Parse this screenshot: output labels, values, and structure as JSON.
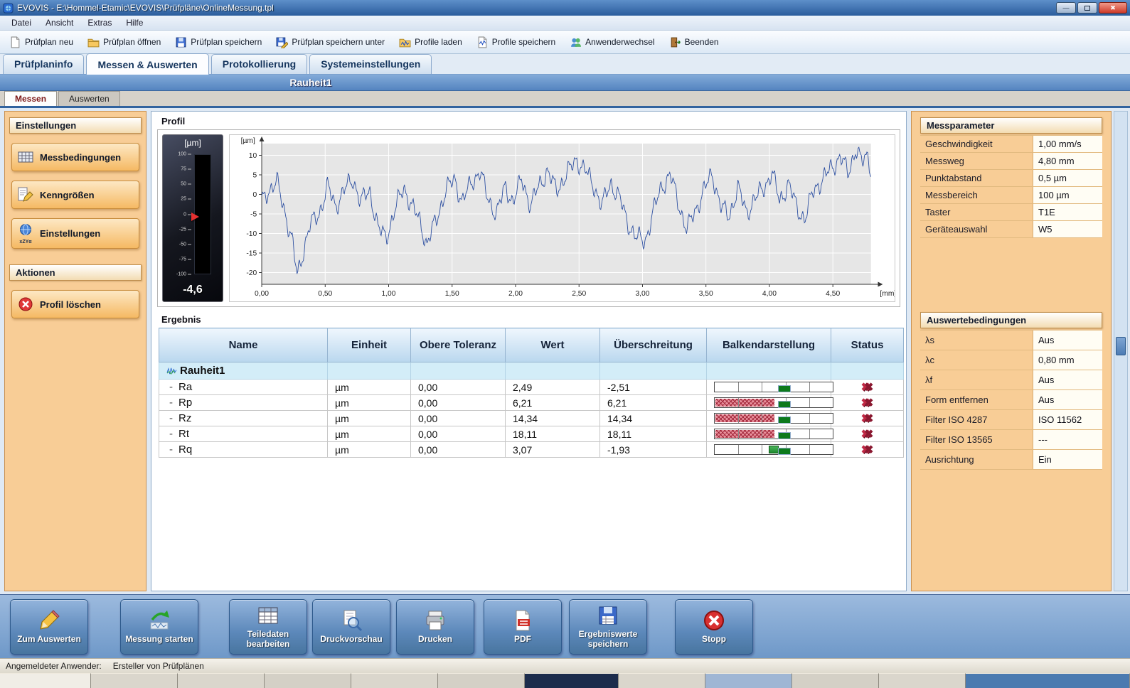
{
  "window": {
    "title": "EVOVIS - E:\\Hommel-Etamic\\EVOVIS\\Prüfpläne\\OnlineMessung.tpl"
  },
  "menubar": {
    "items": [
      "Datei",
      "Ansicht",
      "Extras",
      "Hilfe"
    ]
  },
  "toolbar": {
    "buttons": [
      {
        "label": "Prüfplan neu",
        "icon": "new-testplan-icon"
      },
      {
        "label": "Prüfplan öffnen",
        "icon": "open-testplan-icon"
      },
      {
        "label": "Prüfplan speichern",
        "icon": "save-testplan-icon"
      },
      {
        "label": "Prüfplan speichern unter",
        "icon": "save-testplan-as-icon"
      },
      {
        "label": "Profile laden",
        "icon": "load-profiles-icon"
      },
      {
        "label": "Profile speichern",
        "icon": "save-profiles-icon"
      },
      {
        "label": "Anwenderwechsel",
        "icon": "switch-user-icon"
      },
      {
        "label": "Beenden",
        "icon": "exit-icon"
      }
    ]
  },
  "tabs": {
    "items": [
      "Prüfplaninfo",
      "Messen & Auswerten",
      "Protokollierung",
      "Systemeinstellungen"
    ],
    "active_index": 1
  },
  "subtitle": "Rauheit1",
  "subtabs": {
    "items": [
      "Messen",
      "Auswerten"
    ],
    "active_index": 0
  },
  "sidebar": {
    "settings_header": "Einstellungen",
    "buttons": [
      {
        "label": "Messbedingungen",
        "icon": "measurement-conditions-icon"
      },
      {
        "label": "Kenngrößen",
        "icon": "parameters-icon"
      },
      {
        "label": "Einstellungen",
        "icon": "settings-globe-icon",
        "icon_caption": "xZYα"
      }
    ],
    "actions_header": "Aktionen",
    "action_buttons": [
      {
        "label": "Profil löschen",
        "icon": "delete-profile-icon"
      }
    ]
  },
  "profile_section": {
    "title": "Profil",
    "gauge": {
      "unit": "[µm]",
      "ticks": [
        "100",
        "75",
        "50",
        "25",
        "0",
        "-25",
        "-50",
        "-75",
        "-100"
      ],
      "max": 100,
      "min": -100,
      "value": -4.6,
      "value_label": "-4,6"
    }
  },
  "chart_data": {
    "type": "line",
    "y_unit": "[µm]",
    "x_unit": "[mm]",
    "y_ticks": [
      "10",
      "5",
      "0",
      "-5",
      "-10",
      "-15",
      "-20"
    ],
    "y_tick_values": [
      10,
      5,
      0,
      -5,
      -10,
      -15,
      -20
    ],
    "x_ticks": [
      "0,00",
      "0,50",
      "1,00",
      "1,50",
      "2,00",
      "2,50",
      "3,00",
      "3,50",
      "4,00",
      "4,50"
    ],
    "x_tick_values": [
      0,
      0.5,
      1,
      1.5,
      2,
      2.5,
      3,
      3.5,
      4,
      4.5
    ],
    "xlim": [
      0,
      4.8
    ],
    "ylim": [
      -23,
      13
    ],
    "series_name": "Rauheit1 Profil",
    "points": [
      [
        0,
        -2
      ],
      [
        0.05,
        1
      ],
      [
        0.12,
        3
      ],
      [
        0.18,
        -4
      ],
      [
        0.24,
        -12
      ],
      [
        0.28,
        -21
      ],
      [
        0.33,
        -14
      ],
      [
        0.38,
        -8
      ],
      [
        0.45,
        -5
      ],
      [
        0.52,
        2
      ],
      [
        0.58,
        -3
      ],
      [
        0.65,
        1
      ],
      [
        0.72,
        4
      ],
      [
        0.78,
        -2
      ],
      [
        0.85,
        1
      ],
      [
        0.92,
        -9
      ],
      [
        0.98,
        -11
      ],
      [
        1.05,
        -4
      ],
      [
        1.12,
        2
      ],
      [
        1.18,
        -3
      ],
      [
        1.25,
        -7
      ],
      [
        1.3,
        -13
      ],
      [
        1.38,
        -6
      ],
      [
        1.45,
        1
      ],
      [
        1.52,
        4
      ],
      [
        1.58,
        -2
      ],
      [
        1.65,
        3
      ],
      [
        1.72,
        6
      ],
      [
        1.78,
        -1
      ],
      [
        1.85,
        -5
      ],
      [
        1.92,
        2
      ],
      [
        1.98,
        -2
      ],
      [
        2.05,
        4
      ],
      [
        2.12,
        -3
      ],
      [
        2.18,
        2
      ],
      [
        2.25,
        6
      ],
      [
        2.32,
        1
      ],
      [
        2.4,
        5
      ],
      [
        2.48,
        9
      ],
      [
        2.55,
        6
      ],
      [
        2.62,
        2
      ],
      [
        2.68,
        -3
      ],
      [
        2.75,
        3
      ],
      [
        2.82,
        -1
      ],
      [
        2.88,
        -7
      ],
      [
        2.95,
        -11
      ],
      [
        3.02,
        -12
      ],
      [
        3.08,
        -5
      ],
      [
        3.15,
        2
      ],
      [
        3.22,
        5
      ],
      [
        3.28,
        -2
      ],
      [
        3.35,
        -9
      ],
      [
        3.42,
        -4
      ],
      [
        3.48,
        1
      ],
      [
        3.55,
        5
      ],
      [
        3.62,
        -3
      ],
      [
        3.68,
        -6
      ],
      [
        3.75,
        2
      ],
      [
        3.82,
        -5
      ],
      [
        3.88,
        -1
      ],
      [
        3.95,
        1
      ],
      [
        4.02,
        6
      ],
      [
        4.08,
        -2
      ],
      [
        4.15,
        3
      ],
      [
        4.22,
        -4
      ],
      [
        4.28,
        -6
      ],
      [
        4.35,
        1
      ],
      [
        4.42,
        4
      ],
      [
        4.5,
        7
      ],
      [
        4.56,
        10
      ],
      [
        4.62,
        5
      ],
      [
        4.68,
        12
      ],
      [
        4.73,
        8
      ],
      [
        4.78,
        10
      ],
      [
        4.8,
        6
      ]
    ]
  },
  "results": {
    "title": "Ergebnis",
    "columns": [
      "Name",
      "Einheit",
      "Obere Toleranz",
      "Wert",
      "Überschreitung",
      "Balkendarstellung",
      "Status"
    ],
    "group": "Rauheit1",
    "rows": [
      {
        "name": "Ra",
        "unit": "µm",
        "upper_tolerance": "0,00",
        "value": "2,49",
        "exceed": "-2,51",
        "bar": "none",
        "status": "fail"
      },
      {
        "name": "Rp",
        "unit": "µm",
        "upper_tolerance": "0,00",
        "value": "6,21",
        "exceed": "6,21",
        "bar": "red",
        "status": "fail"
      },
      {
        "name": "Rz",
        "unit": "µm",
        "upper_tolerance": "0,00",
        "value": "14,34",
        "exceed": "14,34",
        "bar": "red",
        "status": "fail"
      },
      {
        "name": "Rt",
        "unit": "µm",
        "upper_tolerance": "0,00",
        "value": "18,11",
        "exceed": "18,11",
        "bar": "red",
        "status": "fail"
      },
      {
        "name": "Rq",
        "unit": "µm",
        "upper_tolerance": "0,00",
        "value": "3,07",
        "exceed": "-1,93",
        "bar": "green",
        "status": "fail"
      }
    ]
  },
  "messparameter": {
    "title": "Messparameter",
    "rows": [
      {
        "label": "Geschwindigkeit",
        "value": "1,00 mm/s"
      },
      {
        "label": "Messweg",
        "value": "4,80 mm"
      },
      {
        "label": "Punktabstand",
        "value": "0,5 µm"
      },
      {
        "label": "Messbereich",
        "value": "100 µm"
      },
      {
        "label": "Taster",
        "value": "T1E"
      },
      {
        "label": "Geräteauswahl",
        "value": "W5"
      }
    ]
  },
  "auswertebedingungen": {
    "title": "Auswertebedingungen",
    "rows": [
      {
        "label": "λs",
        "value": "Aus"
      },
      {
        "label": "λc",
        "value": "0,80 mm"
      },
      {
        "label": "λf",
        "value": "Aus"
      },
      {
        "label": "Form entfernen",
        "value": "Aus"
      },
      {
        "label": "Filter ISO 4287",
        "value": "ISO 11562"
      },
      {
        "label": "Filter ISO 13565",
        "value": "---"
      },
      {
        "label": "Ausrichtung",
        "value": "Ein"
      }
    ]
  },
  "bottom_toolbar": {
    "buttons": [
      {
        "label": "Zum Auswerten",
        "icon": "evaluate-icon"
      },
      {
        "label": "Messung starten",
        "icon": "start-measurement-icon"
      },
      {
        "label": "Teiledaten bearbeiten",
        "icon": "edit-part-data-icon"
      },
      {
        "label": "Druckvorschau",
        "icon": "print-preview-icon"
      },
      {
        "label": "Drucken",
        "icon": "print-icon"
      },
      {
        "label": "PDF",
        "icon": "pdf-icon"
      },
      {
        "label": "Ergebniswerte speichern",
        "icon": "save-results-icon"
      },
      {
        "label": "Stopp",
        "icon": "stop-icon"
      }
    ]
  },
  "statusbar": {
    "label": "Angemeldeter Anwender:",
    "value": "Ersteller von Prüfplänen"
  },
  "colors": {
    "accent_blue": "#2b5c9c",
    "panel_orange": "#f8cd96",
    "fail_red": "#c02844",
    "profile_line": "#2a4da0",
    "pass_green": "#0c7a1c"
  }
}
